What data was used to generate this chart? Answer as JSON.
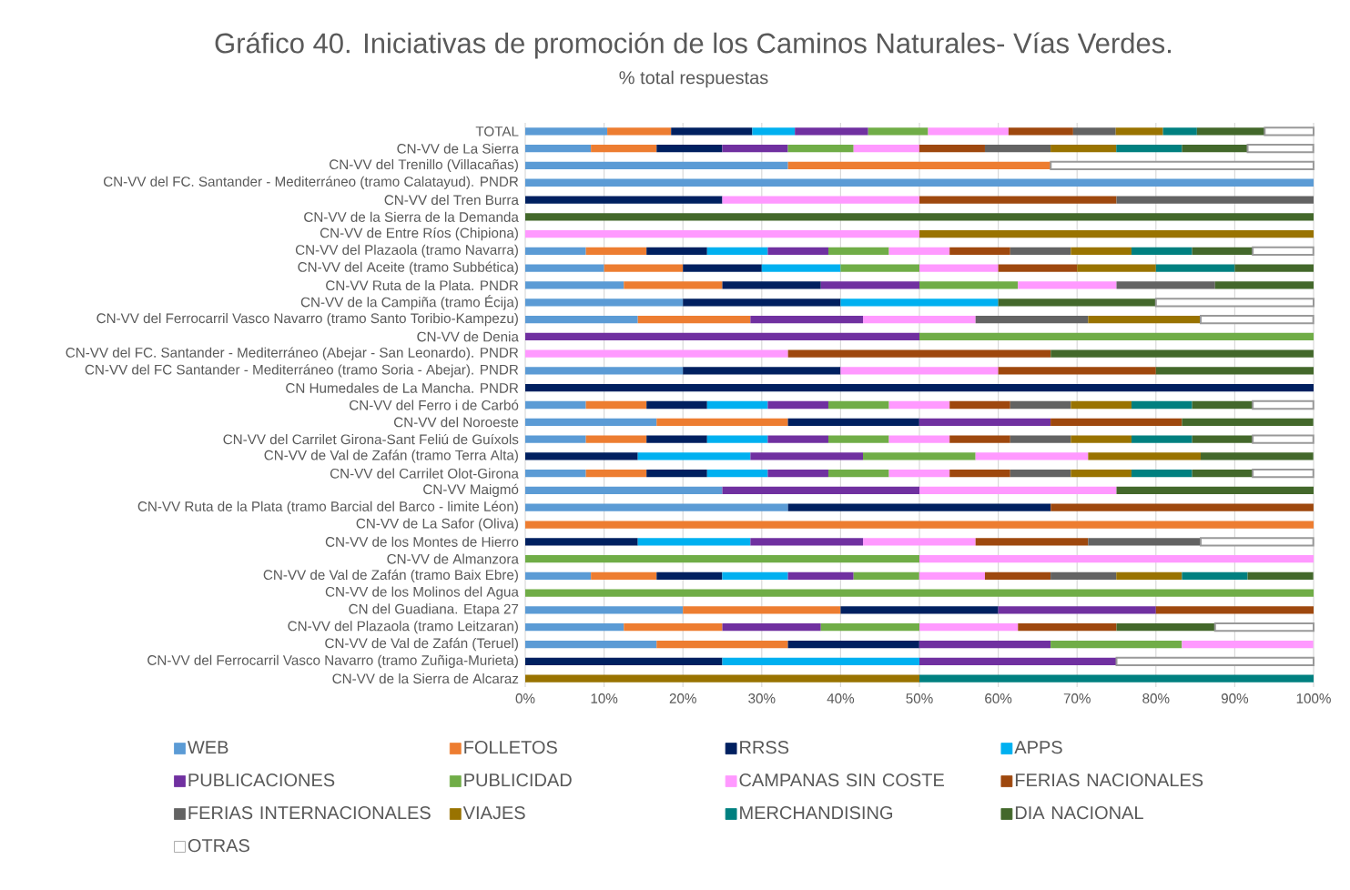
{
  "chart_data": {
    "type": "bar",
    "orientation": "horizontal",
    "stacked": true,
    "title": "Gráfico 40. Iniciativas de promoción de los Caminos Naturales- Vías Verdes.",
    "subtitle": "% total respuestas",
    "categories": [
      "TOTAL",
      "CN-VV de La Sierra",
      "CN-VV del Trenillo (Villacañas)",
      "CN-VV del FC. Santander - Mediterráneo (tramo Calatayud). PNDR",
      "CN-VV del Tren Burra",
      "CN-VV de la Sierra de la Demanda",
      "CN-VV de Entre Ríos (Chipiona)",
      "CN-VV del Plazaola (tramo Navarra)",
      "CN-VV del Aceite (tramo Subbética)",
      "CN-VV Ruta de la Plata. PNDR",
      "CN-VV de la Campiña (tramo Écija)",
      "CN-VV del Ferrocarril Vasco Navarro (tramo Santo Toribio-Kampezu)",
      "CN-VV de Denia",
      "CN-VV del FC. Santander - Mediterráneo (Abejar - San Leonardo). PNDR",
      "CN-VV del FC Santander - Mediterráneo (tramo Soria - Abejar). PNDR",
      "CN Humedales de La Mancha. PNDR",
      "CN-VV del Ferro i de Carbó",
      "CN-VV del Noroeste",
      "CN-VV del Carrilet Girona-Sant Feliú de Guíxols",
      "CN-VV de Val de Zafán (tramo Terra Alta)",
      "CN-VV del Carrilet Olot-Girona",
      "CN-VV Maigmó",
      "CN-VV Ruta de la Plata (tramo Barcial del Barco - limite Léon)",
      "CN-VV de La Safor (Oliva)",
      "CN-VV de los Montes de Hierro",
      "CN-VV de Almanzora",
      "CN-VV de Val de Zafán (tramo Baix Ebre)",
      "CN-VV de los Molinos del Agua",
      "CN del Guadiana. Etapa 27",
      "CN-VV del Plazaola (tramo Leitzaran)",
      "CN-VV de Val de Zafán (Teruel)",
      "CN-VV del Ferrocarril Vasco Navarro (tramo Zuñiga-Murieta)",
      "CN-VV de la Sierra de Alcaraz"
    ],
    "series": [
      {
        "name": "WEB",
        "color": "#5b9bd5",
        "values": [
          10.4,
          8.33,
          33.33,
          100,
          null,
          null,
          null,
          7.69,
          10,
          12.5,
          20,
          14.28,
          null,
          null,
          20,
          null,
          7.69,
          16.66,
          7.69,
          null,
          7.69,
          25,
          33.33,
          null,
          null,
          null,
          8.33,
          null,
          20,
          12.5,
          16.66,
          null,
          null
        ]
      },
      {
        "name": "FOLLETOS",
        "color": "#ed7d31",
        "values": [
          8.1,
          8.33,
          33.33,
          null,
          null,
          null,
          null,
          7.69,
          10,
          12.5,
          null,
          14.28,
          null,
          null,
          null,
          null,
          7.69,
          16.66,
          7.69,
          null,
          7.69,
          null,
          null,
          100,
          null,
          null,
          8.33,
          null,
          20,
          12.5,
          16.66,
          null,
          null
        ]
      },
      {
        "name": "RRSS",
        "color": "#002060",
        "values": [
          10.3,
          8.33,
          null,
          null,
          25,
          null,
          null,
          7.69,
          10,
          12.5,
          20,
          null,
          null,
          null,
          20,
          100,
          7.69,
          16.66,
          7.69,
          14.28,
          7.69,
          null,
          33.33,
          null,
          14.28,
          null,
          8.33,
          null,
          20,
          null,
          16.66,
          25,
          null
        ]
      },
      {
        "name": "APPS",
        "color": "#00b0f0",
        "values": [
          5.4,
          null,
          null,
          null,
          null,
          null,
          null,
          7.69,
          10,
          null,
          20,
          null,
          null,
          null,
          null,
          null,
          7.69,
          null,
          7.69,
          14.28,
          7.69,
          null,
          null,
          null,
          14.28,
          null,
          8.33,
          null,
          null,
          null,
          null,
          25,
          null
        ]
      },
      {
        "name": "PUBLICACIONES",
        "color": "#7030a0",
        "values": [
          9.3,
          8.33,
          null,
          null,
          null,
          null,
          null,
          7.69,
          null,
          12.5,
          null,
          14.28,
          50,
          null,
          null,
          null,
          7.69,
          16.66,
          7.69,
          14.28,
          7.69,
          25,
          null,
          null,
          14.28,
          null,
          8.33,
          null,
          20,
          12.5,
          16.66,
          25,
          null
        ]
      },
      {
        "name": "PUBLICIDAD",
        "color": "#70ad47",
        "values": [
          7.6,
          8.33,
          null,
          null,
          null,
          null,
          null,
          7.69,
          10,
          12.5,
          null,
          null,
          50,
          null,
          null,
          null,
          7.69,
          null,
          7.69,
          14.28,
          7.69,
          null,
          null,
          null,
          null,
          50,
          8.33,
          100,
          null,
          12.5,
          16.66,
          null,
          null
        ]
      },
      {
        "name": "CAMPANAS SIN COSTE",
        "color": "#ff99ff",
        "values": [
          10.2,
          8.33,
          null,
          null,
          25,
          null,
          50,
          7.69,
          10,
          12.5,
          null,
          14.28,
          null,
          33.33,
          20,
          null,
          7.69,
          null,
          7.69,
          14.28,
          7.69,
          25,
          null,
          null,
          14.28,
          50,
          8.33,
          null,
          null,
          12.5,
          16.66,
          null,
          null
        ]
      },
      {
        "name": "FERIAS NACIONALES",
        "color": "#9e480e",
        "values": [
          8.2,
          8.33,
          null,
          null,
          25,
          null,
          null,
          7.69,
          10,
          null,
          null,
          null,
          null,
          33.33,
          20,
          null,
          7.69,
          16.66,
          7.69,
          null,
          7.69,
          null,
          33.33,
          null,
          14.28,
          null,
          8.33,
          null,
          20,
          12.5,
          null,
          null,
          null
        ]
      },
      {
        "name": "FERIAS INTERNACIONALES",
        "color": "#636363",
        "values": [
          5.4,
          8.33,
          null,
          null,
          25,
          null,
          null,
          7.69,
          null,
          12.5,
          null,
          14.28,
          null,
          null,
          null,
          null,
          7.69,
          null,
          7.69,
          null,
          7.69,
          null,
          null,
          null,
          14.28,
          null,
          8.33,
          null,
          null,
          null,
          null,
          null,
          null
        ]
      },
      {
        "name": "VIAJES",
        "color": "#997300",
        "values": [
          6.0,
          8.33,
          null,
          null,
          null,
          null,
          50,
          7.69,
          10,
          null,
          null,
          14.28,
          null,
          null,
          null,
          null,
          7.69,
          null,
          7.69,
          14.28,
          7.69,
          null,
          null,
          null,
          null,
          null,
          8.33,
          null,
          null,
          null,
          null,
          null,
          50
        ]
      },
      {
        "name": "MERCHANDISING",
        "color": "#008080",
        "values": [
          4.3,
          8.33,
          null,
          null,
          null,
          null,
          null,
          7.69,
          10,
          null,
          null,
          null,
          null,
          null,
          null,
          null,
          7.69,
          null,
          7.69,
          null,
          7.69,
          null,
          null,
          null,
          null,
          null,
          8.33,
          null,
          null,
          null,
          null,
          null,
          50
        ]
      },
      {
        "name": "DIA NACIONAL",
        "color": "#43682b",
        "values": [
          8.6,
          8.33,
          null,
          null,
          null,
          100,
          null,
          7.69,
          10,
          12.5,
          20,
          null,
          null,
          33.33,
          20,
          null,
          7.69,
          16.66,
          7.69,
          14.28,
          7.69,
          25,
          null,
          null,
          null,
          null,
          8.33,
          null,
          null,
          12.5,
          null,
          null,
          null
        ]
      },
      {
        "name": "OTRAS",
        "color": "#ffffff",
        "values": [
          6.2,
          8.33,
          33.33,
          null,
          null,
          null,
          null,
          7.69,
          null,
          null,
          20,
          14.28,
          null,
          null,
          null,
          null,
          7.69,
          null,
          7.69,
          null,
          7.69,
          null,
          null,
          null,
          14.28,
          null,
          null,
          null,
          null,
          12.5,
          null,
          25,
          null
        ]
      }
    ],
    "xlim": [
      0,
      100
    ],
    "xticks": [
      {
        "value": 0,
        "label": "0%"
      },
      {
        "value": 10,
        "label": "10%"
      },
      {
        "value": 20,
        "label": "20%"
      },
      {
        "value": 30,
        "label": "30%"
      },
      {
        "value": 40,
        "label": "40%"
      },
      {
        "value": 50,
        "label": "50%"
      },
      {
        "value": 60,
        "label": "60%"
      },
      {
        "value": 70,
        "label": "70%"
      },
      {
        "value": 80,
        "label": "80%"
      },
      {
        "value": 90,
        "label": "90%"
      },
      {
        "value": 100,
        "label": "100%"
      }
    ],
    "grid": "x",
    "legend": "bottom"
  }
}
